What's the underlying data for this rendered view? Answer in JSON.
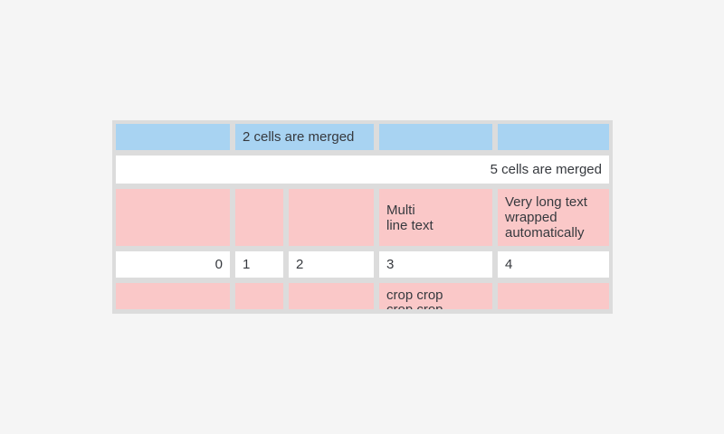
{
  "colors": {
    "cell_blue": "#a8d3f2",
    "cell_pink": "#fac8c8",
    "cell_white": "#ffffff",
    "table_frame": "#dcdcdc",
    "text": "#36393e",
    "page_bg": "#f5f5f5"
  },
  "table": {
    "rows": [
      {
        "cells": [
          {
            "text": ""
          },
          {
            "text": "2 cells are merged",
            "merged": 2
          },
          {
            "text": ""
          },
          {
            "text": ""
          }
        ]
      },
      {
        "cells": [
          {
            "text": "5 cells are merged",
            "merged": 5,
            "align": "right"
          }
        ]
      },
      {
        "cells": [
          {
            "text": ""
          },
          {
            "text": ""
          },
          {
            "text": ""
          },
          {
            "text": "Multi\nline text"
          },
          {
            "text": "Very long text wrapped automatically"
          }
        ]
      },
      {
        "cells": [
          {
            "text": "0",
            "align": "right"
          },
          {
            "text": "1"
          },
          {
            "text": "2"
          },
          {
            "text": "3"
          },
          {
            "text": "4"
          }
        ]
      },
      {
        "cells": [
          {
            "text": ""
          },
          {
            "text": ""
          },
          {
            "text": ""
          },
          {
            "text": "crop crop crop crop",
            "cropped": true
          },
          {
            "text": ""
          }
        ]
      }
    ]
  }
}
